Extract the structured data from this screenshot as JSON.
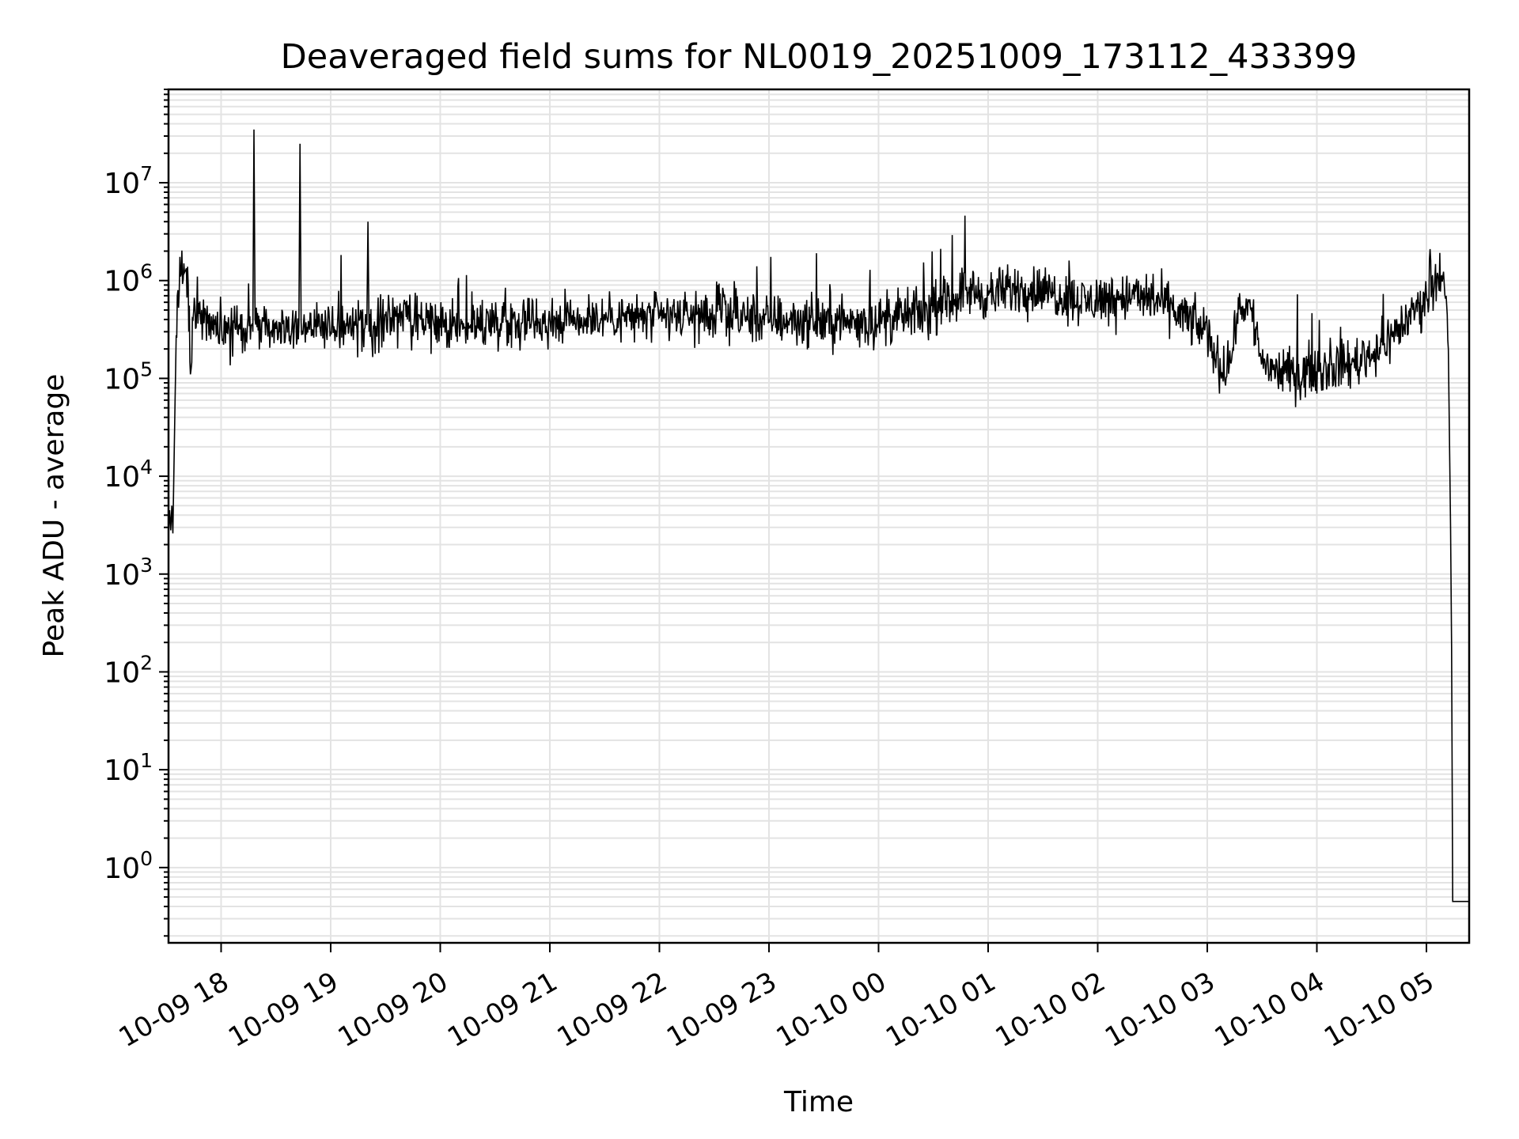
{
  "chart_data": {
    "type": "line",
    "title": "Deaveraged field sums for NL0019_20251009_173112_433399",
    "xlabel": "Time",
    "ylabel": "Peak ADU - average",
    "yscale": "log",
    "ylim": [
      0.17,
      90000000
    ],
    "xlim_hours": [
      17.52,
      29.39
    ],
    "x_ticks": [
      {
        "label": "10-09 18",
        "hour": 18
      },
      {
        "label": "10-09 19",
        "hour": 19
      },
      {
        "label": "10-09 20",
        "hour": 20
      },
      {
        "label": "10-09 21",
        "hour": 21
      },
      {
        "label": "10-09 22",
        "hour": 22
      },
      {
        "label": "10-09 23",
        "hour": 23
      },
      {
        "label": "10-10 00",
        "hour": 24
      },
      {
        "label": "10-10 01",
        "hour": 25
      },
      {
        "label": "10-10 02",
        "hour": 26
      },
      {
        "label": "10-10 03",
        "hour": 27
      },
      {
        "label": "10-10 04",
        "hour": 28
      },
      {
        "label": "10-10 05",
        "hour": 29
      }
    ],
    "y_ticks": [
      {
        "base": "10",
        "exp": "0",
        "value": 1
      },
      {
        "base": "10",
        "exp": "1",
        "value": 10
      },
      {
        "base": "10",
        "exp": "2",
        "value": 100
      },
      {
        "base": "10",
        "exp": "3",
        "value": 1000
      },
      {
        "base": "10",
        "exp": "4",
        "value": 10000
      },
      {
        "base": "10",
        "exp": "5",
        "value": 100000
      },
      {
        "base": "10",
        "exp": "6",
        "value": 1000000
      },
      {
        "base": "10",
        "exp": "7",
        "value": 10000000
      }
    ],
    "grid": true,
    "line_color": "#000000",
    "series": [
      {
        "name": "field sums",
        "points": [
          [
            17.52,
            2500
          ],
          [
            17.53,
            4500
          ],
          [
            17.54,
            2800
          ],
          [
            17.55,
            5000
          ],
          [
            17.56,
            2600
          ],
          [
            17.58,
            60000
          ],
          [
            17.6,
            700000
          ],
          [
            17.63,
            1100000
          ],
          [
            17.66,
            1500000
          ],
          [
            17.7,
            900000
          ],
          [
            17.72,
            110000
          ],
          [
            17.75,
            500000
          ],
          [
            17.9,
            350000
          ],
          [
            18.1,
            330000
          ],
          [
            18.29,
            300000
          ],
          [
            18.3,
            35000000
          ],
          [
            18.31,
            400000
          ],
          [
            18.5,
            320000
          ],
          [
            18.71,
            350000
          ],
          [
            18.72,
            25000000
          ],
          [
            18.73,
            380000
          ],
          [
            19.0,
            300000
          ],
          [
            19.33,
            350000
          ],
          [
            19.34,
            4000000
          ],
          [
            19.35,
            300000
          ],
          [
            19.6,
            450000
          ],
          [
            20.0,
            330000
          ],
          [
            20.5,
            380000
          ],
          [
            21.0,
            400000
          ],
          [
            21.5,
            430000
          ],
          [
            22.0,
            420000
          ],
          [
            22.5,
            450000
          ],
          [
            23.0,
            400000
          ],
          [
            23.5,
            380000
          ],
          [
            24.0,
            380000
          ],
          [
            24.5,
            500000
          ],
          [
            24.8,
            800000
          ],
          [
            25.0,
            700000
          ],
          [
            25.3,
            850000
          ],
          [
            25.6,
            750000
          ],
          [
            25.9,
            600000
          ],
          [
            26.2,
            700000
          ],
          [
            26.5,
            650000
          ],
          [
            26.7,
            500000
          ],
          [
            26.9,
            350000
          ],
          [
            27.0,
            300000
          ],
          [
            27.1,
            140000
          ],
          [
            27.2,
            130000
          ],
          [
            27.3,
            600000
          ],
          [
            27.4,
            500000
          ],
          [
            27.5,
            150000
          ],
          [
            27.7,
            110000
          ],
          [
            27.9,
            120000
          ],
          [
            28.1,
            130000
          ],
          [
            28.3,
            140000
          ],
          [
            28.5,
            180000
          ],
          [
            28.7,
            280000
          ],
          [
            28.9,
            500000
          ],
          [
            29.0,
            700000
          ],
          [
            29.05,
            1000000
          ],
          [
            29.1,
            1200000
          ],
          [
            29.15,
            1100000
          ],
          [
            29.18,
            700000
          ],
          [
            29.2,
            200000
          ],
          [
            29.22,
            3000
          ],
          [
            29.23,
            180
          ],
          [
            29.24,
            0.45
          ],
          [
            29.39,
            0.45
          ]
        ]
      }
    ]
  }
}
